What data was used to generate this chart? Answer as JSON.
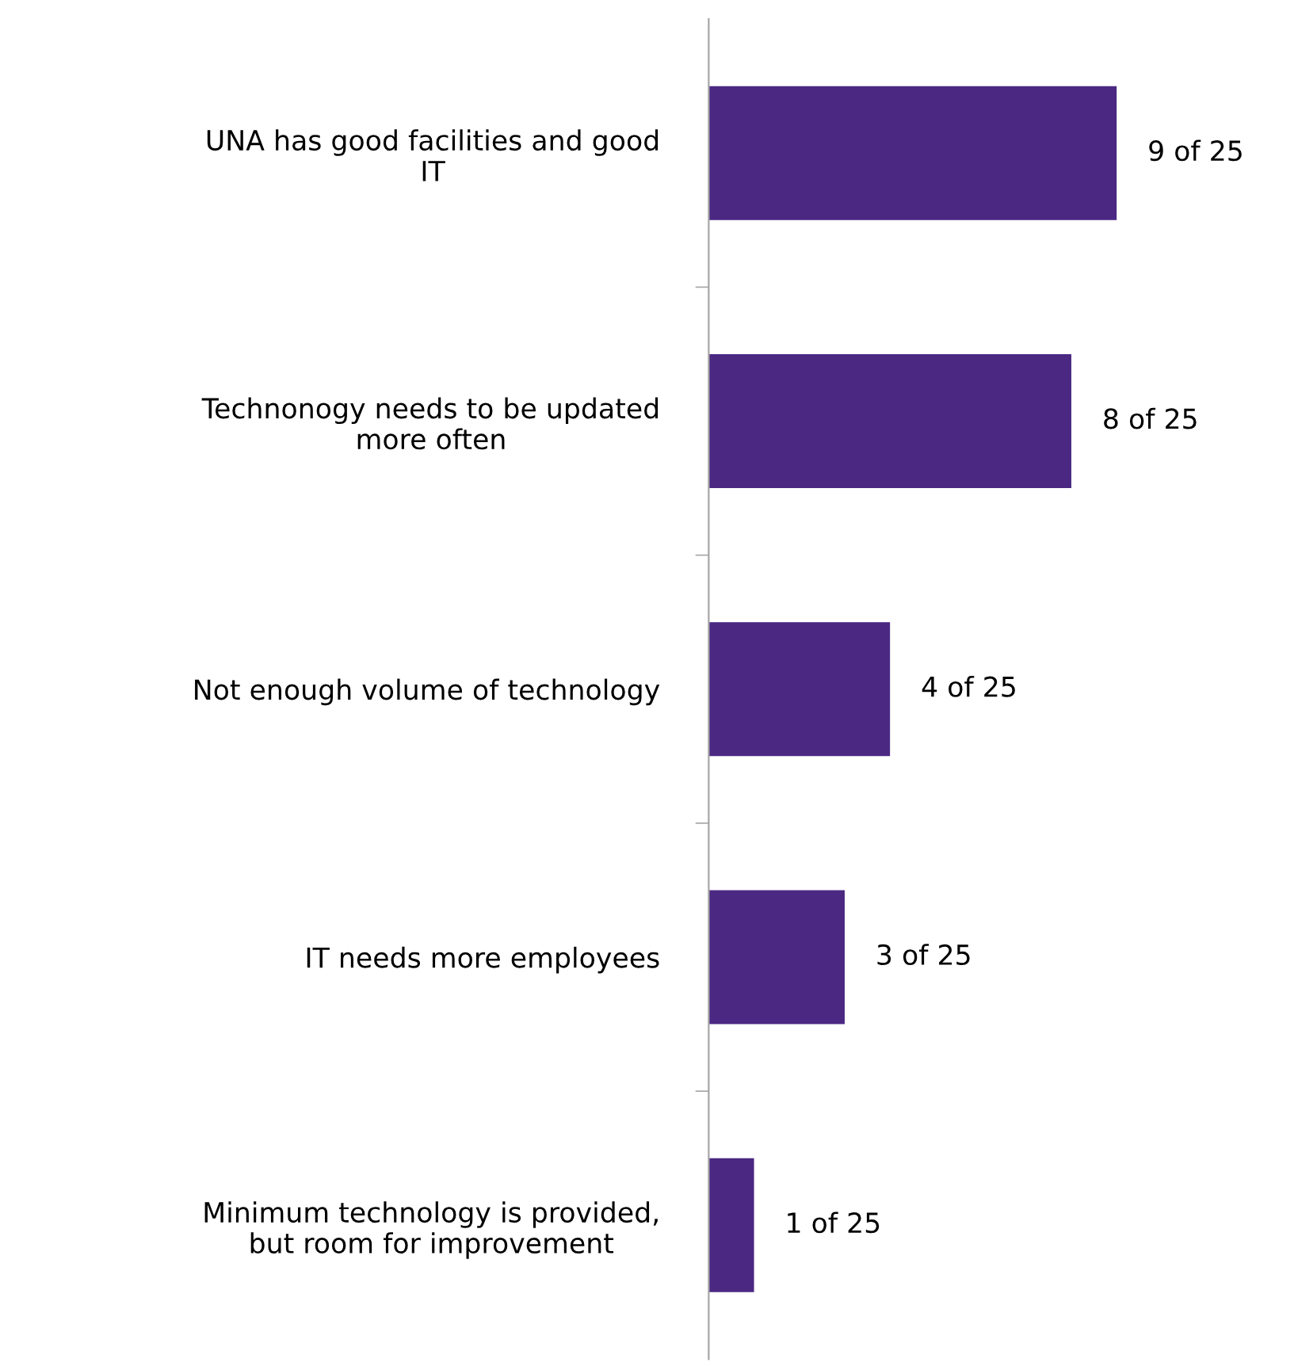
{
  "chart_data": {
    "type": "bar",
    "orientation": "horizontal",
    "categories": [
      "UNA has good facilities and good\nIT",
      "Technonogy needs to be updated\nmore often",
      "Not enough volume of technology",
      "IT needs more employees",
      "Minimum technology is provided,\nbut room for improvement"
    ],
    "values": [
      9,
      8,
      4,
      3,
      1
    ],
    "value_labels": [
      "9 of 25",
      "8 of 25",
      "4 of 25",
      "3 of 25",
      "1 of 25"
    ],
    "color": "#4b2882",
    "grid": false,
    "legend": false,
    "tick_labels": "y"
  }
}
